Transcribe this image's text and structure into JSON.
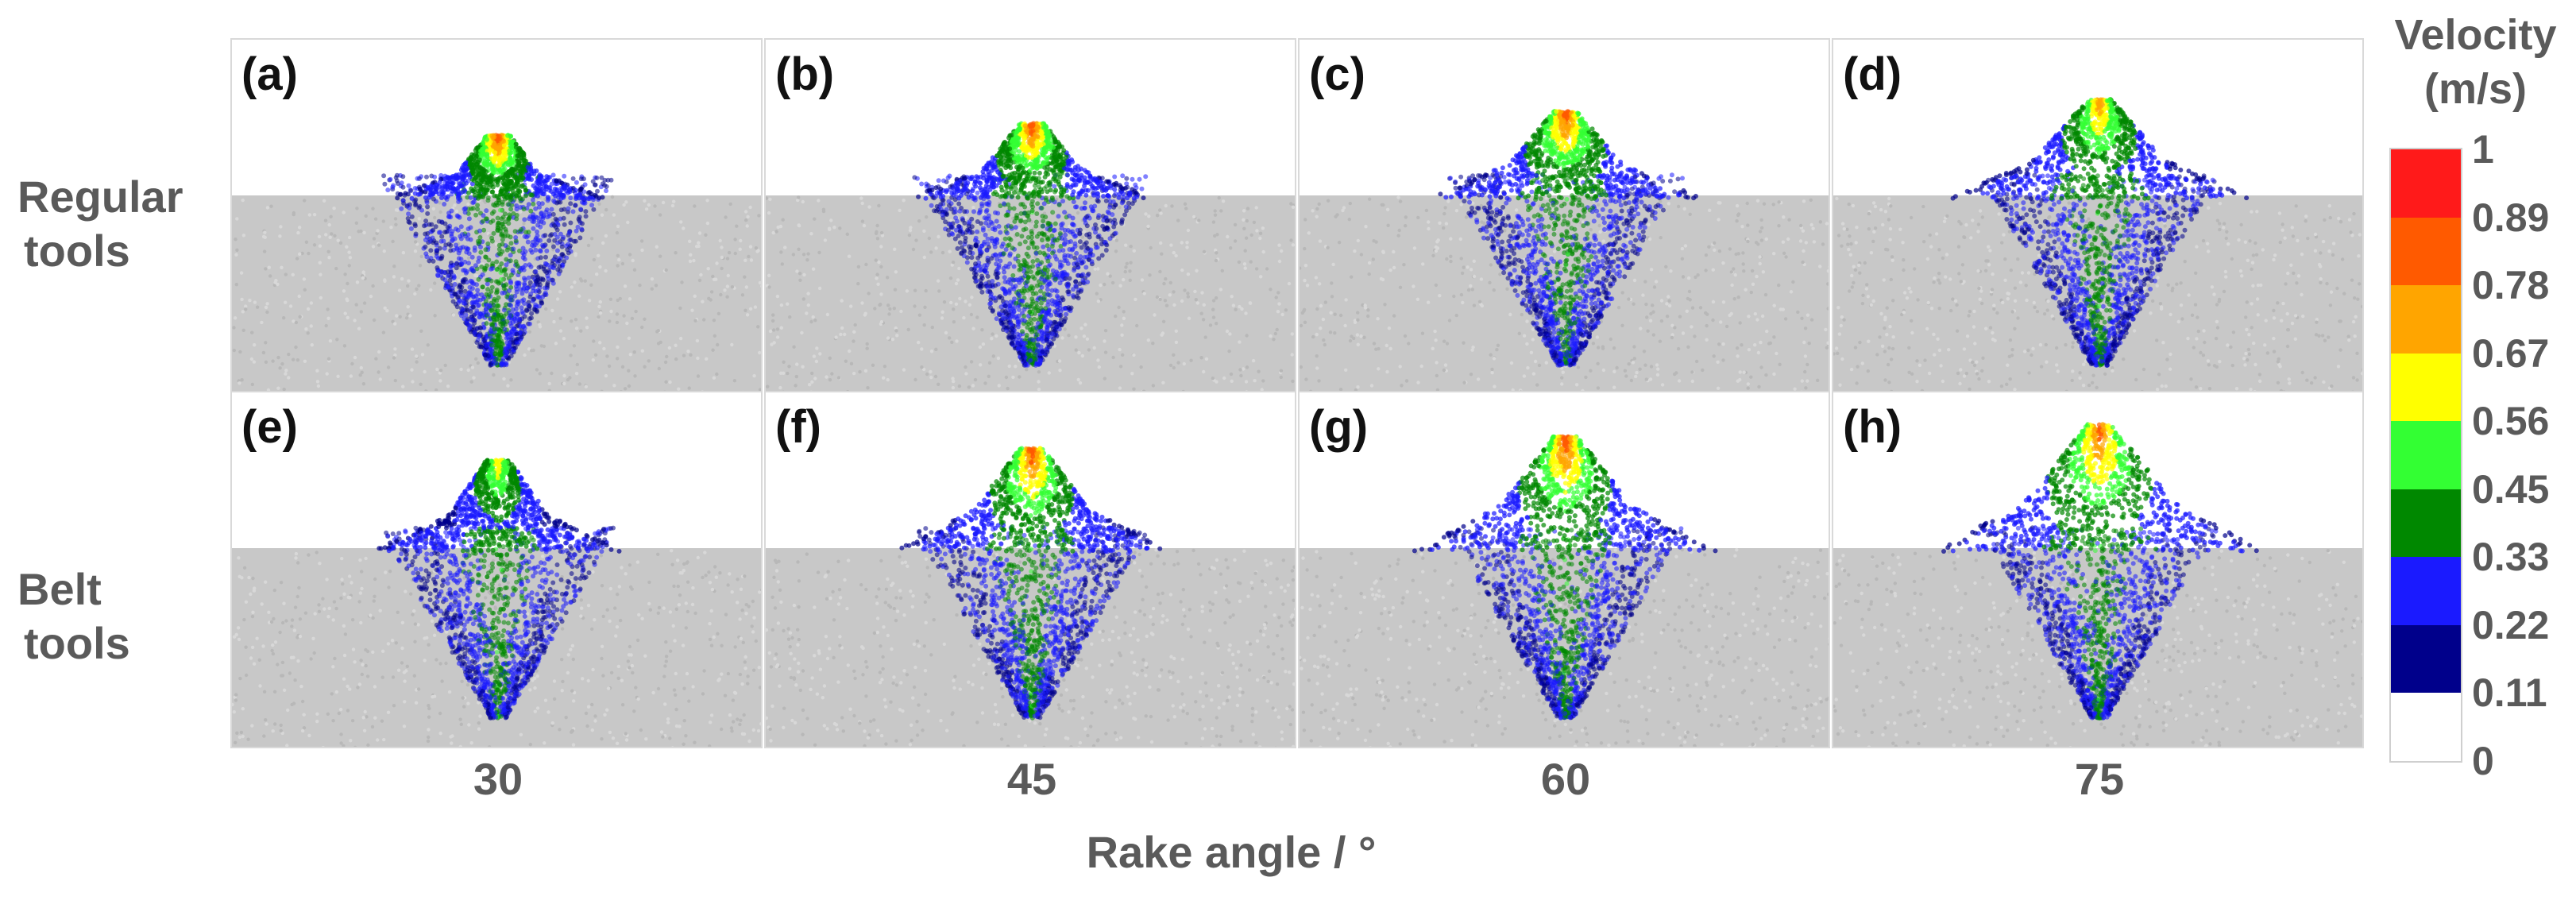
{
  "row_labels": [
    {
      "line1": "Regular",
      "line2": "tools"
    },
    {
      "line1": "Belt",
      "line2": "tools"
    }
  ],
  "panels": [
    {
      "letter": "(a)",
      "row": "Regular tools",
      "rake_angle": 30,
      "chip_peak_velocity": 0.89
    },
    {
      "letter": "(b)",
      "row": "Regular tools",
      "rake_angle": 45,
      "chip_peak_velocity": 0.89
    },
    {
      "letter": "(c)",
      "row": "Regular tools",
      "rake_angle": 60,
      "chip_peak_velocity": 0.89
    },
    {
      "letter": "(d)",
      "row": "Regular tools",
      "rake_angle": 75,
      "chip_peak_velocity": 0.78
    },
    {
      "letter": "(e)",
      "row": "Belt tools",
      "rake_angle": 30,
      "chip_peak_velocity": 0.67
    },
    {
      "letter": "(f)",
      "row": "Belt tools",
      "rake_angle": 45,
      "chip_peak_velocity": 0.89
    },
    {
      "letter": "(g)",
      "row": "Belt tools",
      "rake_angle": 60,
      "chip_peak_velocity": 0.89
    },
    {
      "letter": "(h)",
      "row": "Belt tools",
      "rake_angle": 75,
      "chip_peak_velocity": 0.89
    }
  ],
  "columns": [
    "30",
    "45",
    "60",
    "75"
  ],
  "x_axis_title": "Rake angle / °",
  "colorbar": {
    "title_line1": "Velocity",
    "title_line2": "(m/s)",
    "ticks": [
      "1",
      "0.89",
      "0.78",
      "0.67",
      "0.56",
      "0.45",
      "0.33",
      "0.22",
      "0.11",
      "0"
    ],
    "colors": [
      "#ff1a1a",
      "#ff5a00",
      "#ffa500",
      "#ffff00",
      "#33ff33",
      "#008800",
      "#1a1aff",
      "#00008b",
      "#ffffff"
    ],
    "substrate_color": "#c8c8c8"
  }
}
